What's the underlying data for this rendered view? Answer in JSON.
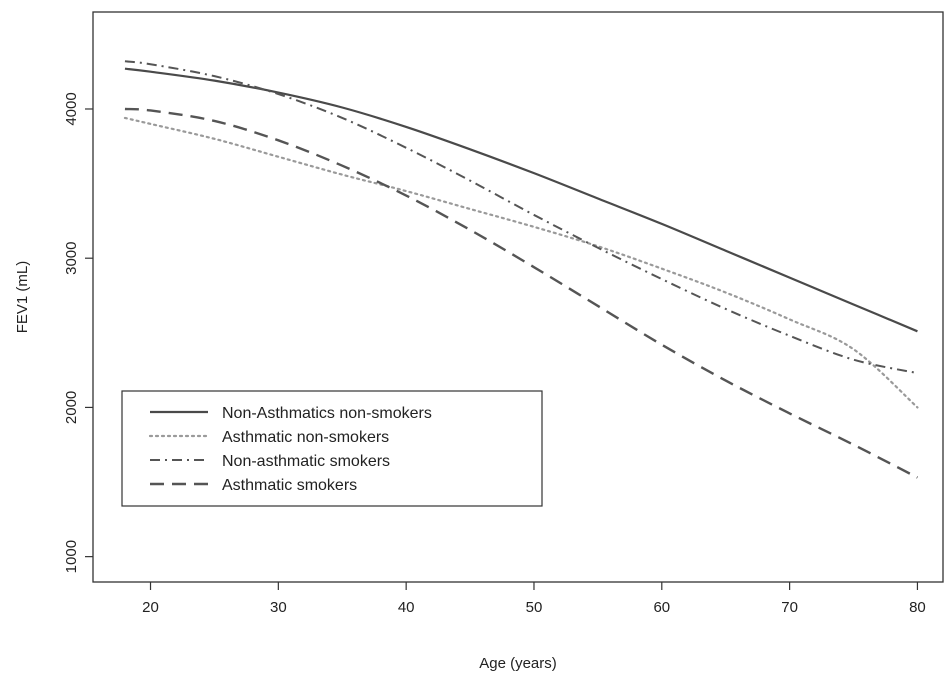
{
  "chart_data": {
    "type": "line",
    "title": "",
    "xlabel": "Age (years)",
    "ylabel": "FEV1 (mL)",
    "xlim": [
      15.5,
      82
    ],
    "ylim": [
      830,
      4650
    ],
    "x_ticks": [
      20,
      30,
      40,
      50,
      60,
      70,
      80
    ],
    "y_ticks": [
      1000,
      2000,
      3000,
      4000
    ],
    "grid": false,
    "legend_position": "lower-left",
    "x": [
      18,
      20,
      25,
      30,
      35,
      40,
      45,
      50,
      55,
      60,
      65,
      70,
      75,
      80
    ],
    "series": [
      {
        "name": "Non-Asthmatics non-smokers",
        "line_style": "solid",
        "color": "#4a4a4a",
        "values": [
          4270,
          4250,
          4190,
          4110,
          4010,
          3880,
          3730,
          3570,
          3400,
          3230,
          3050,
          2870,
          2690,
          2510
        ]
      },
      {
        "name": "Asthmatic non-smokers",
        "line_style": "dotted",
        "color": "#9a9a9a",
        "values": [
          3940,
          3900,
          3800,
          3680,
          3560,
          3450,
          3330,
          3210,
          3080,
          2930,
          2770,
          2590,
          2390,
          2000
        ]
      },
      {
        "name": "Non-asthmatic smokers",
        "line_style": "dashdot",
        "color": "#555555",
        "values": [
          4320,
          4300,
          4220,
          4100,
          3940,
          3740,
          3520,
          3290,
          3070,
          2860,
          2660,
          2480,
          2320,
          2230
        ]
      },
      {
        "name": "Asthmatic smokers",
        "line_style": "dashed",
        "color": "#555555",
        "values": [
          4000,
          3990,
          3920,
          3790,
          3620,
          3420,
          3190,
          2940,
          2680,
          2420,
          2180,
          1960,
          1750,
          1530
        ]
      }
    ]
  }
}
